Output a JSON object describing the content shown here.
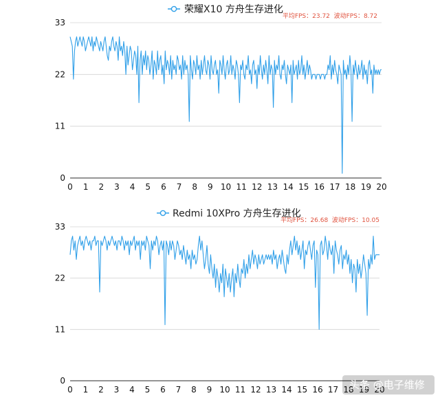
{
  "chart_data": [
    {
      "type": "line",
      "title": "荣耀X10 方舟生存进化",
      "stats": "平均FPS：23.72  波动FPS：8.72",
      "xlim": [
        0,
        20
      ],
      "ylim": [
        0,
        33
      ],
      "x_ticks": [
        "0",
        "1",
        "2",
        "3",
        "4",
        "5",
        "6",
        "7",
        "8",
        "9",
        "10",
        "11",
        "12",
        "13",
        "14",
        "15",
        "16",
        "17",
        "18",
        "19",
        "20"
      ],
      "y_ticks": [
        "0",
        "11",
        "22",
        "33"
      ],
      "grid": true,
      "color": "#2f9fe8",
      "series": [
        {
          "values": [
            30,
            29,
            28,
            21,
            27,
            29,
            30,
            28,
            29,
            30,
            29,
            28,
            30,
            29,
            27,
            28,
            29,
            30,
            29,
            28,
            30,
            27,
            29,
            28,
            30,
            29,
            28,
            27,
            29,
            28,
            27,
            29,
            30,
            28,
            26,
            25,
            28,
            27,
            29,
            30,
            28,
            27,
            29,
            28,
            25,
            30,
            27,
            28,
            26,
            29,
            27,
            22,
            28,
            24,
            26,
            28,
            27,
            23,
            25,
            27,
            26,
            22,
            28,
            16,
            25,
            27,
            22,
            26,
            24,
            27,
            23,
            26,
            25,
            22,
            24,
            27,
            21,
            25,
            24,
            22,
            27,
            23,
            25,
            26,
            22,
            24,
            20,
            27,
            23,
            25,
            24,
            22,
            26,
            21,
            25,
            23,
            24,
            22,
            26,
            25,
            23,
            24,
            21,
            26,
            22,
            25,
            23,
            24,
            22,
            12,
            26,
            23,
            21,
            25,
            24,
            22,
            26,
            23,
            24,
            21,
            25,
            22,
            24,
            26,
            23,
            22,
            25,
            24,
            21,
            26,
            23,
            22,
            24,
            25,
            22,
            23,
            18,
            25,
            24,
            22,
            26,
            23,
            21,
            24,
            25,
            22,
            23,
            26,
            22,
            24,
            23,
            21,
            25,
            24,
            22,
            16,
            24,
            23,
            25,
            22,
            21,
            24,
            23,
            26,
            22,
            23,
            20,
            24,
            25,
            22,
            23,
            19,
            24,
            22,
            26,
            23,
            21,
            24,
            22,
            25,
            23,
            20,
            26,
            22,
            24,
            23,
            15,
            25,
            22,
            24,
            23,
            26,
            22,
            21,
            24,
            23,
            25,
            22,
            20,
            24,
            23,
            22,
            24,
            16,
            25,
            22,
            23,
            24,
            21,
            25,
            22,
            23,
            26,
            22,
            24,
            21,
            23,
            25,
            22,
            24,
            23,
            21,
            22,
            22,
            22,
            21,
            22,
            22,
            22,
            21,
            22,
            22,
            22,
            21,
            22,
            22,
            24,
            23,
            26,
            21,
            24,
            22,
            25,
            23,
            22,
            20,
            24,
            23,
            22,
            1,
            25,
            22,
            23,
            21,
            24,
            22,
            26,
            23,
            12,
            24,
            22,
            25,
            23,
            21,
            24,
            22,
            23,
            25,
            21,
            24,
            22,
            23,
            20,
            24,
            25,
            22,
            23,
            18,
            24,
            22,
            23,
            22,
            23,
            22,
            23,
            23
          ]
        }
      ]
    },
    {
      "type": "line",
      "title": "Redmi 10XPro 方舟生存进化",
      "stats": "平均FPS：26.68  波动FPS：10.05",
      "xlim": [
        0,
        20
      ],
      "ylim": [
        0,
        33
      ],
      "x_ticks": [
        "0",
        "1",
        "2",
        "3",
        "4",
        "5",
        "6",
        "7",
        "8",
        "9",
        "10",
        "11",
        "12",
        "13",
        "14",
        "15",
        "16",
        "17",
        "18",
        "19",
        "20"
      ],
      "y_ticks": [
        "0",
        "11",
        "22",
        "33"
      ],
      "grid": true,
      "color": "#2f9fe8",
      "series": [
        {
          "values": [
            27,
            30,
            31,
            28,
            30,
            26,
            29,
            30,
            31,
            29,
            30,
            28,
            30,
            31,
            30,
            29,
            30,
            28,
            30,
            30,
            31,
            29,
            30,
            30,
            19,
            30,
            29,
            30,
            31,
            30,
            28,
            30,
            29,
            30,
            31,
            30,
            29,
            30,
            28,
            30,
            30,
            29,
            31,
            30,
            28,
            30,
            29,
            30,
            27,
            30,
            29,
            30,
            31,
            28,
            30,
            29,
            30,
            26,
            30,
            29,
            30,
            28,
            31,
            30,
            29,
            24,
            30,
            28,
            30,
            29,
            31,
            30,
            27,
            29,
            30,
            28,
            30,
            12,
            30,
            29,
            27,
            30,
            28,
            30,
            29,
            26,
            28,
            30,
            29,
            27,
            28,
            26,
            29,
            27,
            25,
            28,
            26,
            27,
            24,
            28,
            26,
            27,
            25,
            26,
            29,
            31,
            28,
            30,
            27,
            24,
            26,
            29,
            25,
            23,
            27,
            24,
            22,
            25,
            20,
            24,
            22,
            19,
            23,
            21,
            25,
            18,
            24,
            22,
            20,
            23,
            19,
            22,
            24,
            18,
            23,
            21,
            25,
            22,
            20,
            24,
            23,
            26,
            22,
            25,
            23,
            27,
            24,
            26,
            28,
            25,
            27,
            26,
            24,
            27,
            25,
            26,
            27,
            25,
            26,
            27,
            26,
            27,
            26,
            27,
            25,
            28,
            26,
            27,
            24,
            26,
            27,
            25,
            28,
            26,
            24,
            23,
            27,
            25,
            28,
            30,
            27,
            29,
            31,
            28,
            30,
            27,
            29,
            26,
            28,
            30,
            24,
            28,
            27,
            29,
            30,
            28,
            26,
            29,
            30,
            20,
            28,
            27,
            11,
            29,
            30,
            27,
            28,
            31,
            29,
            26,
            30,
            28,
            27,
            29,
            23,
            30,
            28,
            27,
            25,
            28,
            29,
            24,
            27,
            26,
            28,
            25,
            27,
            23,
            26,
            21,
            25,
            24,
            19,
            26,
            23,
            25,
            22,
            24,
            27,
            25,
            23,
            14,
            26,
            24,
            27,
            25,
            31,
            26,
            27,
            27,
            27,
            27
          ]
        }
      ]
    }
  ],
  "watermark": {
    "text": "头条 @电子维修"
  }
}
